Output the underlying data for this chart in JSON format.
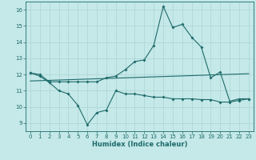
{
  "xlabel": "Humidex (Indice chaleur)",
  "background_color": "#c5e8e8",
  "line_color": "#1e6b6b",
  "grid_color": "#aad4d4",
  "xlim": [
    -0.5,
    23.5
  ],
  "ylim": [
    8.5,
    16.5
  ],
  "yticks": [
    9,
    10,
    11,
    12,
    13,
    14,
    15,
    16
  ],
  "xticks": [
    0,
    1,
    2,
    3,
    4,
    5,
    6,
    7,
    8,
    9,
    10,
    11,
    12,
    13,
    14,
    15,
    16,
    17,
    18,
    19,
    20,
    21,
    22,
    23
  ],
  "line1_x": [
    0,
    1,
    2,
    3,
    4,
    5,
    6,
    7,
    8,
    9,
    10,
    11,
    12,
    13,
    14,
    15,
    16,
    17,
    18,
    19,
    20,
    21,
    22,
    23
  ],
  "line1_y": [
    12.1,
    11.9,
    11.5,
    11.0,
    10.8,
    10.1,
    8.9,
    9.65,
    9.8,
    11.0,
    10.8,
    10.8,
    10.7,
    10.6,
    10.6,
    10.5,
    10.5,
    10.5,
    10.45,
    10.45,
    10.3,
    10.3,
    10.4,
    10.5
  ],
  "line2_x": [
    0,
    23
  ],
  "line2_y": [
    11.6,
    12.05
  ],
  "line3_x": [
    0,
    1,
    2,
    3,
    4,
    5,
    6,
    7,
    8,
    9,
    10,
    11,
    12,
    13,
    14,
    15,
    16,
    17,
    18,
    19,
    20,
    21,
    22,
    23
  ],
  "line3_y": [
    12.1,
    12.0,
    11.55,
    11.55,
    11.55,
    11.55,
    11.55,
    11.55,
    11.8,
    11.9,
    12.3,
    12.8,
    12.9,
    13.8,
    16.2,
    14.9,
    15.1,
    14.3,
    13.7,
    11.8,
    12.15,
    10.35,
    10.5,
    10.5
  ]
}
